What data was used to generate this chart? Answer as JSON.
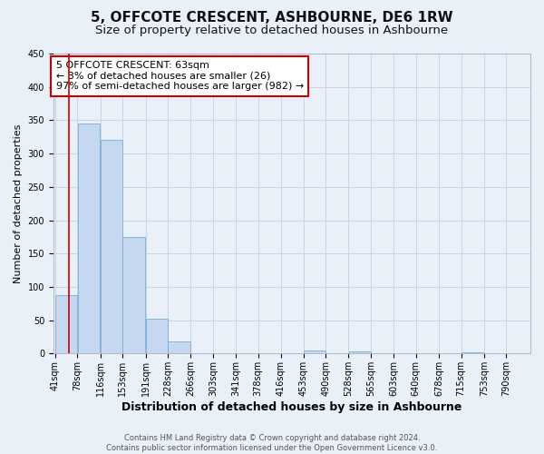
{
  "title": "5, OFFCOTE CRESCENT, ASHBOURNE, DE6 1RW",
  "subtitle": "Size of property relative to detached houses in Ashbourne",
  "xlabel": "Distribution of detached houses by size in Ashbourne",
  "ylabel": "Number of detached properties",
  "footer_line1": "Contains HM Land Registry data © Crown copyright and database right 2024.",
  "footer_line2": "Contains public sector information licensed under the Open Government Licence v3.0.",
  "annotation_line1": "5 OFFCOTE CRESCENT: 63sqm",
  "annotation_line2": "← 3% of detached houses are smaller (26)",
  "annotation_line3": "97% of semi-detached houses are larger (982) →",
  "property_size": 63,
  "bin_labels": [
    "41sqm",
    "78sqm",
    "116sqm",
    "153sqm",
    "191sqm",
    "228sqm",
    "266sqm",
    "303sqm",
    "341sqm",
    "378sqm",
    "416sqm",
    "453sqm",
    "490sqm",
    "528sqm",
    "565sqm",
    "603sqm",
    "640sqm",
    "678sqm",
    "715sqm",
    "753sqm",
    "790sqm"
  ],
  "bin_edges": [
    41,
    78,
    116,
    153,
    191,
    228,
    266,
    303,
    341,
    378,
    416,
    453,
    490,
    528,
    565,
    603,
    640,
    678,
    715,
    753,
    790
  ],
  "bar_heights": [
    88,
    345,
    320,
    175,
    52,
    18,
    0,
    0,
    0,
    0,
    0,
    5,
    0,
    3,
    0,
    0,
    0,
    0,
    2,
    0,
    0
  ],
  "bar_color": "#c5d8f0",
  "bar_edgecolor": "#7aafd4",
  "vline_color": "#cc0000",
  "vline_x": 63,
  "ylim": [
    0,
    450
  ],
  "yticks": [
    0,
    50,
    100,
    150,
    200,
    250,
    300,
    350,
    400,
    450
  ],
  "grid_color": "#c8d4e8",
  "background_color": "#eaf0f8",
  "annotation_box_edgecolor": "#cc0000",
  "annotation_box_facecolor": "#ffffff",
  "title_fontsize": 11,
  "subtitle_fontsize": 9.5,
  "xlabel_fontsize": 9,
  "ylabel_fontsize": 8,
  "tick_fontsize": 7,
  "annotation_fontsize": 8,
  "footer_fontsize": 6
}
